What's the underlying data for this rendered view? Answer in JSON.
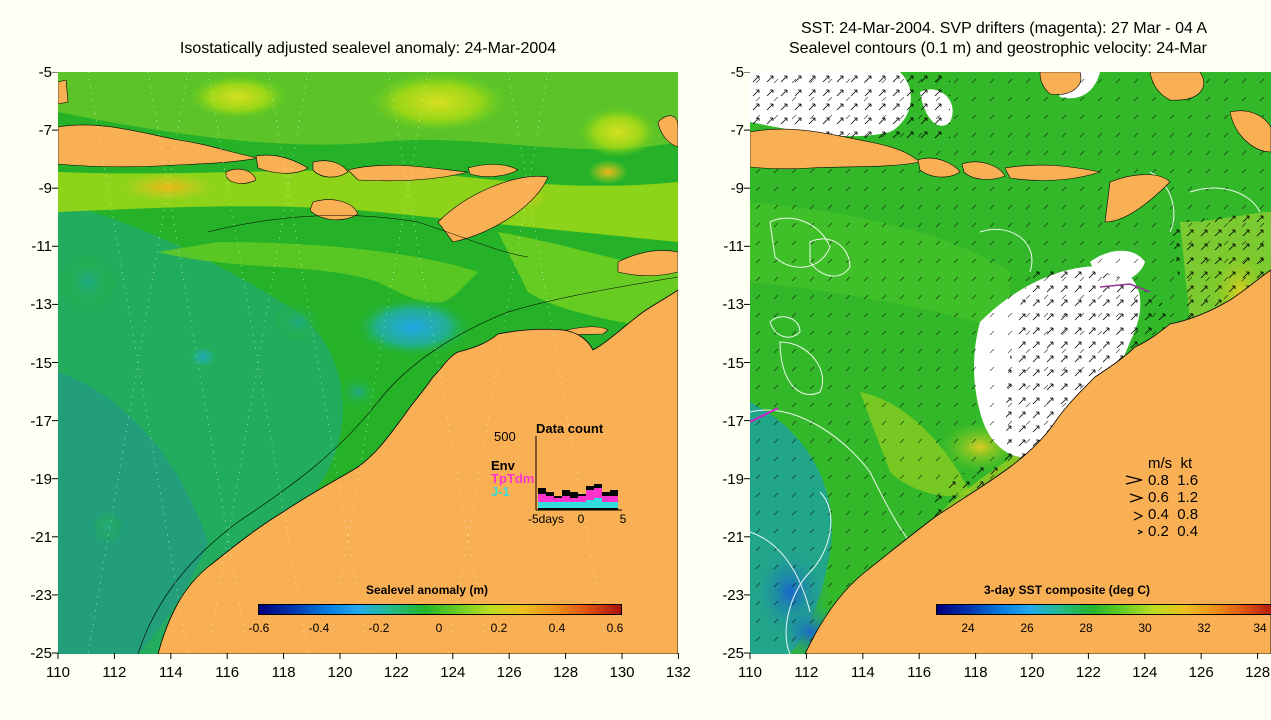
{
  "left_panel": {
    "title": "Isostatically adjusted sealevel anomaly: 24-Mar-2004",
    "colorbar": {
      "label": "Sealevel anomaly (m)",
      "ticks": [
        "-0.6",
        "-0.4",
        "-0.2",
        "0",
        "0.2",
        "0.4",
        "0.6"
      ]
    },
    "data_count": {
      "title": "Data count",
      "ymax_label": "500",
      "series": [
        {
          "name": "Env",
          "color": "#000000"
        },
        {
          "name": "TpTdm",
          "color": "#ff33cc"
        },
        {
          "name": "J-1",
          "color": "#33dddd"
        }
      ],
      "xlabel_left": "-5days",
      "xlabel_mid": "0",
      "xlabel_right": "5"
    }
  },
  "right_panel": {
    "title_line1": "SST: 24-Mar-2004. SVP drifters (magenta): 27 Mar - 04 A",
    "title_line2": "Sealevel contours (0.1 m) and geostrophic velocity: 24-Mar",
    "colorbar": {
      "label": "3-day SST composite (deg C)",
      "ticks": [
        "24",
        "26",
        "28",
        "30",
        "32",
        "34"
      ]
    },
    "speed_legend": {
      "header_ms": "m/s",
      "header_kt": "kt",
      "rows": [
        {
          "ms": "0.8",
          "kt": "1.6"
        },
        {
          "ms": "0.6",
          "kt": "1.2"
        },
        {
          "ms": "0.4",
          "kt": "0.8"
        },
        {
          "ms": "0.2",
          "kt": "0.4"
        }
      ]
    }
  },
  "axes": {
    "y_ticks": [
      "-5",
      "-7",
      "-9",
      "-11",
      "-13",
      "-15",
      "-17",
      "-19",
      "-21",
      "-23",
      "-25"
    ],
    "left_x_ticks": [
      "110",
      "112",
      "114",
      "116",
      "118",
      "120",
      "122",
      "124",
      "126",
      "128",
      "130",
      "132"
    ],
    "right_x_ticks": [
      "110",
      "112",
      "114",
      "116",
      "118",
      "120",
      "122",
      "124",
      "126",
      "128"
    ]
  },
  "colors": {
    "land": "#f9b054",
    "ocean_green": "#22b42a",
    "ocean_light": "#66cc22",
    "ocean_teal": "#22aa66",
    "background": "#fffff4"
  }
}
